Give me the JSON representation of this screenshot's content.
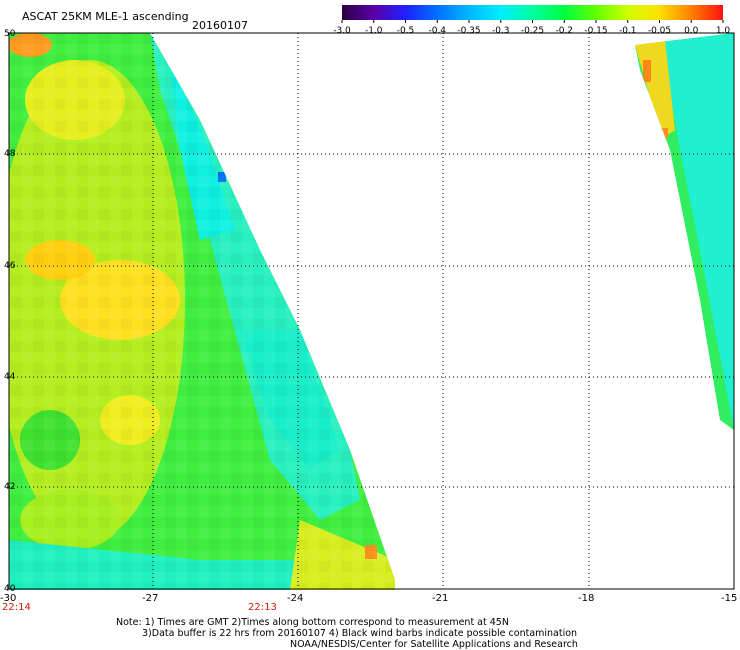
{
  "header": {
    "title": "ASCAT 25KM MLE-1 ascending",
    "date": "20160107"
  },
  "colorbar": {
    "labels": [
      "-3.0",
      "-1.0",
      "-0.5",
      "-0.4",
      "-0.35",
      "-0.3",
      "-0.25",
      "-0.2",
      "-0.15",
      "-0.1",
      "-0.05",
      "0.0",
      "1.0"
    ],
    "colors": [
      "#2a0040",
      "#5a00a8",
      "#2020ff",
      "#0070ff",
      "#00b8ff",
      "#00eeff",
      "#00ffa0",
      "#00ff40",
      "#60ff00",
      "#d0ff00",
      "#ffe000",
      "#ff8000",
      "#ff1010"
    ]
  },
  "axes": {
    "x_ticks": [
      "-30",
      "-27",
      "-24",
      "-21",
      "-18",
      "-15"
    ],
    "y_ticks": [
      "50",
      "48",
      "46",
      "44",
      "42",
      "40"
    ]
  },
  "times": {
    "left": "22:14",
    "middle": "22:13"
  },
  "notes": {
    "line1": "Note: 1) Times are GMT 2)Times along bottom correspond to measurement at 45N",
    "line2": "3)Data buffer is 22 hrs from 20160107 4) Black wind barbs indicate possible contamination",
    "line3": "NOAA/NESDIS/Center for Satellite Applications and Research"
  }
}
